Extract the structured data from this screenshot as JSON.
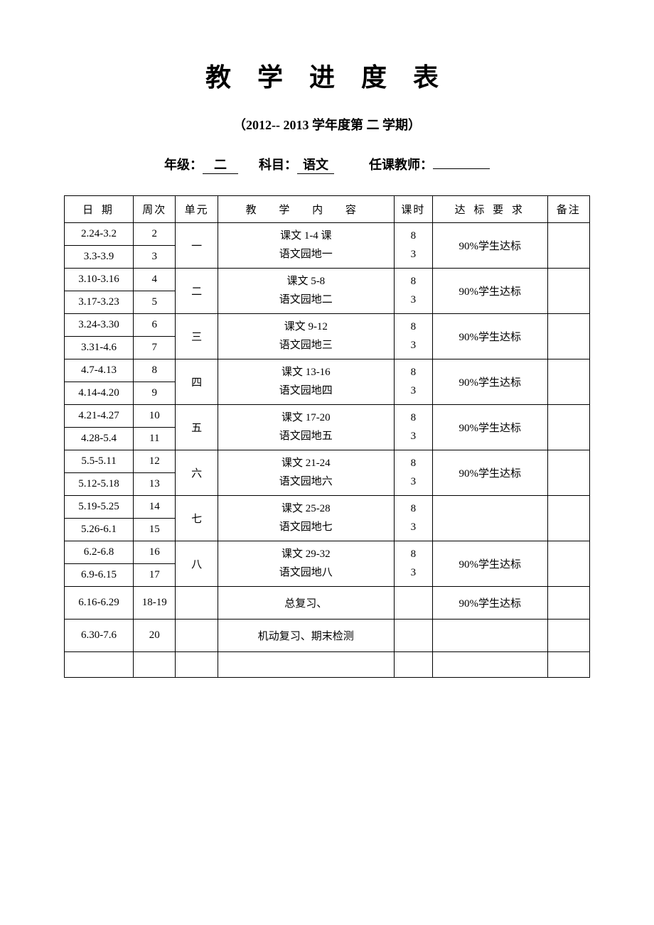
{
  "title": "教 学 进 度 表",
  "subtitle_prefix": "（",
  "subtitle_year": "2012-- 2013",
  "subtitle_mid": "学年度第",
  "subtitle_term": "二",
  "subtitle_suffix": "学期）",
  "info": {
    "grade_label": "年级：",
    "grade_value": "二",
    "subject_label": "科目：",
    "subject_value": "语文",
    "teacher_label": "任课教师：",
    "teacher_value": ""
  },
  "headers": {
    "date": "日 期",
    "week": "周次",
    "unit": "单元",
    "content": "教 学 内 容",
    "hours": "课时",
    "requirement": "达 标 要 求",
    "note": "备注"
  },
  "rows": [
    {
      "date": "2.24-3.2",
      "week": "2"
    },
    {
      "date": "3.3-3.9",
      "week": "3"
    },
    {
      "date": "3.10-3.16",
      "week": "4"
    },
    {
      "date": "3.17-3.23",
      "week": "5"
    },
    {
      "date": "3.24-3.30",
      "week": "6"
    },
    {
      "date": "3.31-4.6",
      "week": "7"
    },
    {
      "date": "4.7-4.13",
      "week": "8"
    },
    {
      "date": "4.14-4.20",
      "week": "9"
    },
    {
      "date": "4.21-4.27",
      "week": "10"
    },
    {
      "date": "4.28-5.4",
      "week": "11"
    },
    {
      "date": "5.5-5.11",
      "week": "12"
    },
    {
      "date": "5.12-5.18",
      "week": "13"
    },
    {
      "date": "5.19-5.25",
      "week": "14"
    },
    {
      "date": "5.26-6.1",
      "week": "15"
    },
    {
      "date": "6.2-6.8",
      "week": "16"
    },
    {
      "date": "6.9-6.15",
      "week": "17"
    },
    {
      "date": "6.16-6.29",
      "week": "18-19"
    },
    {
      "date": "6.30-7.6",
      "week": "20"
    }
  ],
  "units": [
    "一",
    "二",
    "三",
    "四",
    "五",
    "六",
    "七",
    "八"
  ],
  "contents": [
    {
      "line1": "课文 1-4 课",
      "line2": "语文园地一"
    },
    {
      "line1": "课文 5-8",
      "line2": "语文园地二"
    },
    {
      "line1": "课文 9-12",
      "line2": "语文园地三"
    },
    {
      "line1": "课文 13-16",
      "line2": "语文园地四"
    },
    {
      "line1": "课文 17-20",
      "line2": "语文园地五"
    },
    {
      "line1": "课文 21-24",
      "line2": "语文园地六"
    },
    {
      "line1": "课文 25-28",
      "line2": "语文园地七"
    },
    {
      "line1": "课文 29-32",
      "line2": "语文园地八"
    }
  ],
  "hours": {
    "h1": "8",
    "h2": "3"
  },
  "requirement": "90%学生达标",
  "review": "总复习、",
  "final": "机动复习、期末检测"
}
